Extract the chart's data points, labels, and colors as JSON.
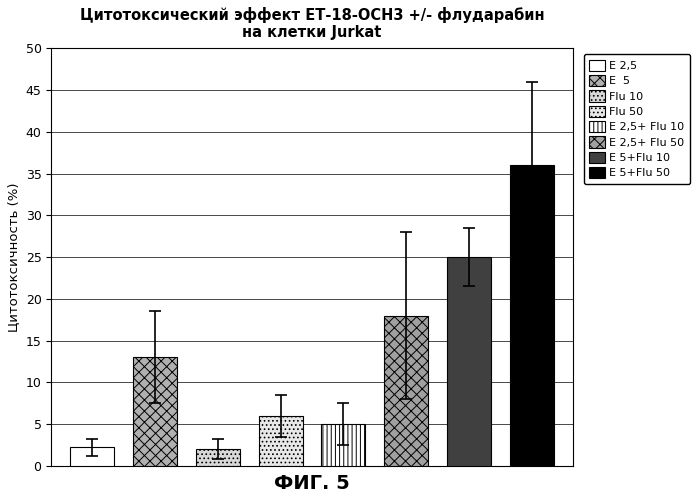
{
  "title_line1": "Цитотоксический эффект ЕТ-18-ОСН3 +/- флударабин",
  "title_line2": "на клетки Jurkat",
  "xlabel": "ФИГ. 5",
  "ylabel": "Цитотоксичность (%)",
  "ylim": [
    0,
    50
  ],
  "yticks": [
    0,
    5,
    10,
    15,
    20,
    25,
    30,
    35,
    40,
    45,
    50
  ],
  "bars": [
    {
      "label": "E 2,5",
      "value": 2.2,
      "error": 1.0,
      "hatch": "",
      "facecolor": "white",
      "edgecolor": "black"
    },
    {
      "label": "E  5",
      "value": 13.0,
      "error": 5.5,
      "hatch": "xxx",
      "facecolor": "#b0b0b0",
      "edgecolor": "black"
    },
    {
      "label": "Flu 10",
      "value": 2.0,
      "error": 1.2,
      "hatch": "....",
      "facecolor": "#d8d8d8",
      "edgecolor": "black"
    },
    {
      "label": "Flu 50",
      "value": 6.0,
      "error": 2.5,
      "hatch": "....",
      "facecolor": "#e8e8e8",
      "edgecolor": "black"
    },
    {
      "label": "E 2,5+ Flu 10",
      "value": 5.0,
      "error": 2.5,
      "hatch": "||||",
      "facecolor": "white",
      "edgecolor": "black"
    },
    {
      "label": "E 2,5+ Flu 50",
      "value": 18.0,
      "error": 10.0,
      "hatch": "xxx",
      "facecolor": "#a0a0a0",
      "edgecolor": "black"
    },
    {
      "label": "E 5+Flu 10",
      "value": 25.0,
      "error": 3.5,
      "hatch": "",
      "facecolor": "#404040",
      "edgecolor": "black"
    },
    {
      "label": "E 5+Flu 50",
      "value": 36.0,
      "error": 10.0,
      "hatch": "",
      "facecolor": "black",
      "edgecolor": "black"
    }
  ],
  "bar_width": 0.7,
  "background_color": "white",
  "figsize": [
    6.97,
    5.0
  ],
  "dpi": 100
}
